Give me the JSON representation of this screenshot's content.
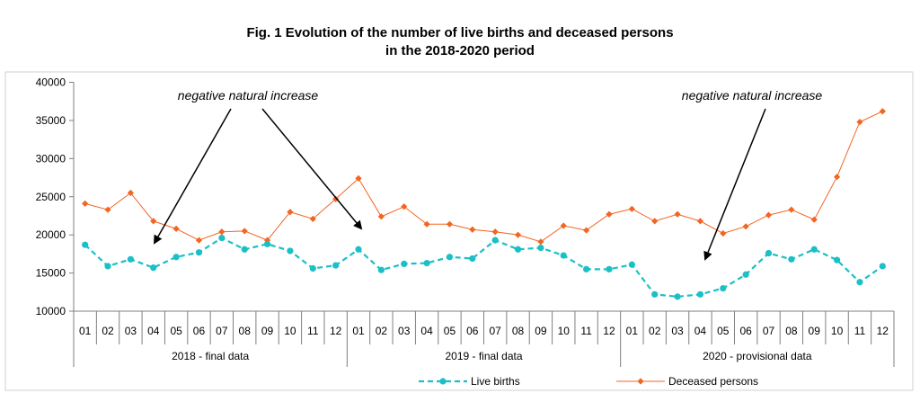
{
  "chart_data": {
    "type": "line",
    "title_line1": "Fig. 1 Evolution of the number of live births and deceased persons",
    "title_line2": "in the 2018-2020 period",
    "ylim": [
      10000,
      40000
    ],
    "yticks": [
      10000,
      15000,
      20000,
      25000,
      30000,
      35000,
      40000
    ],
    "categories": [
      "01",
      "02",
      "03",
      "04",
      "05",
      "06",
      "07",
      "08",
      "09",
      "10",
      "11",
      "12",
      "01",
      "02",
      "03",
      "04",
      "05",
      "06",
      "07",
      "08",
      "09",
      "10",
      "11",
      "12",
      "01",
      "02",
      "03",
      "04",
      "05",
      "06",
      "07",
      "08",
      "09",
      "10",
      "11",
      "12"
    ],
    "groups": [
      "2018 - final data",
      "2019 - final data",
      "2020 - provisional data"
    ],
    "series": [
      {
        "name": "Live births",
        "color": "#1BBFC6",
        "values": [
          18700,
          15900,
          16800,
          15700,
          17100,
          17700,
          19600,
          18100,
          18800,
          17900,
          15600,
          16000,
          18100,
          15400,
          16200,
          16300,
          17100,
          16900,
          19300,
          18100,
          18300,
          17300,
          15500,
          15500,
          16100,
          12200,
          11900,
          12200,
          13000,
          14800,
          17600,
          16800,
          18100,
          16700,
          13800,
          15900
        ]
      },
      {
        "name": "Deceased persons",
        "color": "#F26522",
        "values": [
          24100,
          23300,
          25500,
          21800,
          20800,
          19300,
          20400,
          20500,
          19300,
          23000,
          22100,
          24700,
          27400,
          22400,
          23700,
          21400,
          21400,
          20700,
          20400,
          20000,
          19100,
          21200,
          20600,
          22700,
          23400,
          21800,
          22700,
          21800,
          20200,
          21100,
          22600,
          23300,
          22000,
          27600,
          34800,
          36200
        ]
      }
    ],
    "annotations": [
      "negative natural increase",
      "negative natural increase"
    ],
    "grid": false,
    "legend": "bottom"
  }
}
